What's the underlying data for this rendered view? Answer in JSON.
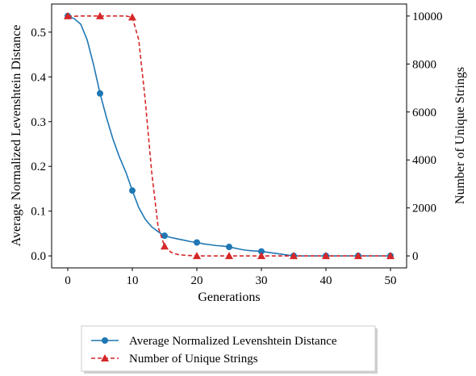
{
  "chart_data": {
    "type": "line",
    "title": "",
    "xlabel": "Generations",
    "ylabel_left": "Average Normalized Levenshtein Distance",
    "ylabel_right": "Number of Unique Strings",
    "xlim": [
      -2.5,
      52.5
    ],
    "ylim_left": [
      -0.0268,
      0.5628
    ],
    "ylim_right": [
      -500,
      10500
    ],
    "x_ticks": [
      0,
      10,
      20,
      30,
      40,
      50
    ],
    "y_ticks_left": [
      0.0,
      0.1,
      0.2,
      0.3,
      0.4,
      0.5
    ],
    "y_ticks_right": [
      0,
      2000,
      4000,
      6000,
      8000,
      10000
    ],
    "grid": false,
    "legend_placement": "below plot, center",
    "series": [
      {
        "name": "Average Normalized Levenshtein Distance",
        "axis": "left",
        "color": "#1f77b4",
        "line_style": "solid",
        "marker": "circle",
        "marker_every": 5,
        "x": [
          0,
          1,
          2,
          3,
          4,
          5,
          6,
          7,
          8,
          9,
          10,
          11,
          12,
          13,
          14,
          15,
          16,
          17,
          18,
          19,
          20,
          21,
          22,
          23,
          24,
          25,
          26,
          27,
          28,
          29,
          30,
          31,
          32,
          33,
          34,
          35,
          36,
          37,
          38,
          39,
          40,
          41,
          42,
          43,
          44,
          45,
          46,
          47,
          48,
          49,
          50
        ],
        "values": [
          0.536,
          0.53,
          0.518,
          0.483,
          0.427,
          0.363,
          0.309,
          0.261,
          0.221,
          0.187,
          0.146,
          0.108,
          0.082,
          0.065,
          0.054,
          0.045,
          0.041,
          0.038,
          0.035,
          0.032,
          0.03,
          0.027,
          0.025,
          0.023,
          0.022,
          0.02,
          0.017,
          0.014,
          0.012,
          0.011,
          0.01,
          0.008,
          0.006,
          0.004,
          0.002,
          0.0,
          0.0,
          0.0,
          0.0,
          0.0,
          0.0,
          0.0,
          0.0,
          0.0,
          0.0,
          0.0,
          0.0,
          0.0,
          0.0,
          0.0,
          0.0
        ]
      },
      {
        "name": "Number of Unique Strings",
        "axis": "right",
        "color": "#d62728",
        "line_style": "dashed",
        "marker": "triangle",
        "marker_every": 5,
        "x": [
          0,
          1,
          2,
          3,
          4,
          5,
          6,
          7,
          8,
          9,
          10,
          11,
          12,
          13,
          14,
          15,
          16,
          17,
          18,
          19,
          20,
          21,
          22,
          23,
          24,
          25,
          26,
          27,
          28,
          29,
          30,
          31,
          32,
          33,
          34,
          35,
          36,
          37,
          38,
          39,
          40,
          41,
          42,
          43,
          44,
          45,
          46,
          47,
          48,
          49,
          50
        ],
        "values": [
          10000,
          9990,
          10000,
          10000,
          10000,
          10000,
          10000,
          10000,
          10000,
          10000,
          9950,
          9000,
          6500,
          3500,
          1200,
          400,
          150,
          60,
          30,
          15,
          0,
          0,
          0,
          0,
          0,
          0,
          0,
          0,
          0,
          0,
          0,
          0,
          0,
          0,
          0,
          0,
          0,
          0,
          0,
          0,
          0,
          0,
          0,
          0,
          0,
          0,
          0,
          0,
          0,
          0,
          0
        ]
      }
    ]
  }
}
